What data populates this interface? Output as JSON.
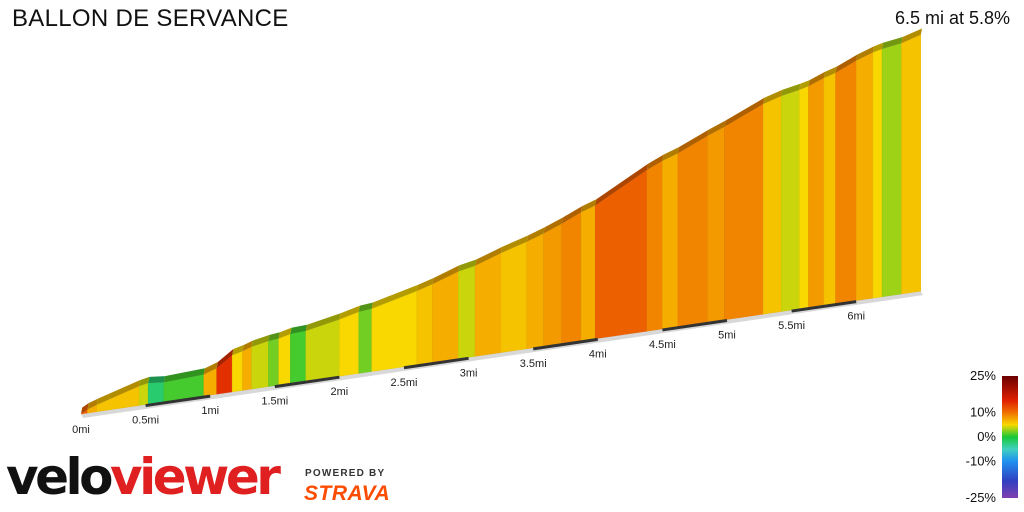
{
  "header": {
    "title": "BALLON DE SERVANCE",
    "summary": "6.5 mi at 5.8%"
  },
  "brand": {
    "logo_part_a": "velo",
    "logo_part_b": "viewer",
    "powered_by": "POWERED BY",
    "strava": "STRAVA"
  },
  "chart_data": {
    "type": "area",
    "title": "BALLON DE SERVANCE",
    "subtitle": "6.5 mi at 5.8%",
    "xlabel": "",
    "ylabel": "",
    "x_unit": "mi",
    "xlim": [
      0,
      6.5
    ],
    "x_ticks": [
      "0mi",
      "0.5mi",
      "1mi",
      "1.5mi",
      "2mi",
      "2.5mi",
      "3mi",
      "3.5mi",
      "4mi",
      "4.5mi",
      "5mi",
      "5.5mi",
      "6mi"
    ],
    "grid": false,
    "segments": [
      {
        "start": 0.0,
        "end": 0.05,
        "gradient": 11
      },
      {
        "start": 0.05,
        "end": 0.12,
        "gradient": 7
      },
      {
        "start": 0.12,
        "end": 0.45,
        "gradient": 6
      },
      {
        "start": 0.45,
        "end": 0.52,
        "gradient": 4
      },
      {
        "start": 0.52,
        "end": 0.64,
        "gradient": -2
      },
      {
        "start": 0.64,
        "end": 0.95,
        "gradient": 1
      },
      {
        "start": 0.95,
        "end": 1.05,
        "gradient": 7
      },
      {
        "start": 1.05,
        "end": 1.17,
        "gradient": 14
      },
      {
        "start": 1.17,
        "end": 1.25,
        "gradient": 5
      },
      {
        "start": 1.25,
        "end": 1.32,
        "gradient": 7
      },
      {
        "start": 1.32,
        "end": 1.45,
        "gradient": 4
      },
      {
        "start": 1.45,
        "end": 1.53,
        "gradient": 2
      },
      {
        "start": 1.53,
        "end": 1.62,
        "gradient": 5
      },
      {
        "start": 1.62,
        "end": 1.74,
        "gradient": 1
      },
      {
        "start": 1.74,
        "end": 2.0,
        "gradient": 4
      },
      {
        "start": 2.0,
        "end": 2.15,
        "gradient": 5
      },
      {
        "start": 2.15,
        "end": 2.25,
        "gradient": 2
      },
      {
        "start": 2.25,
        "end": 2.6,
        "gradient": 5
      },
      {
        "start": 2.6,
        "end": 2.72,
        "gradient": 6
      },
      {
        "start": 2.72,
        "end": 2.92,
        "gradient": 7
      },
      {
        "start": 2.92,
        "end": 3.05,
        "gradient": 4
      },
      {
        "start": 3.05,
        "end": 3.25,
        "gradient": 7
      },
      {
        "start": 3.25,
        "end": 3.45,
        "gradient": 6
      },
      {
        "start": 3.45,
        "end": 3.58,
        "gradient": 7
      },
      {
        "start": 3.58,
        "end": 3.72,
        "gradient": 8
      },
      {
        "start": 3.72,
        "end": 3.87,
        "gradient": 9
      },
      {
        "start": 3.87,
        "end": 3.98,
        "gradient": 7
      },
      {
        "start": 3.98,
        "end": 4.38,
        "gradient": 11
      },
      {
        "start": 4.38,
        "end": 4.5,
        "gradient": 9
      },
      {
        "start": 4.5,
        "end": 4.62,
        "gradient": 7
      },
      {
        "start": 4.62,
        "end": 4.85,
        "gradient": 9
      },
      {
        "start": 4.85,
        "end": 4.98,
        "gradient": 8
      },
      {
        "start": 4.98,
        "end": 5.28,
        "gradient": 9
      },
      {
        "start": 5.28,
        "end": 5.42,
        "gradient": 6
      },
      {
        "start": 5.42,
        "end": 5.56,
        "gradient": 4
      },
      {
        "start": 5.56,
        "end": 5.63,
        "gradient": 5
      },
      {
        "start": 5.63,
        "end": 5.75,
        "gradient": 8
      },
      {
        "start": 5.75,
        "end": 5.84,
        "gradient": 6
      },
      {
        "start": 5.84,
        "end": 6.0,
        "gradient": 9
      },
      {
        "start": 6.0,
        "end": 6.13,
        "gradient": 7
      },
      {
        "start": 6.13,
        "end": 6.2,
        "gradient": 5
      },
      {
        "start": 6.2,
        "end": 6.35,
        "gradient": 3
      },
      {
        "start": 6.35,
        "end": 6.5,
        "gradient": 6
      }
    ],
    "gradient_scale": {
      "labels": [
        "25%",
        "10%",
        "0%",
        "-10%",
        "-25%"
      ],
      "stops": [
        {
          "value": 25,
          "color": "#6a0000"
        },
        {
          "value": 15,
          "color": "#e02000"
        },
        {
          "value": 10,
          "color": "#f07000"
        },
        {
          "value": 5,
          "color": "#f8d800"
        },
        {
          "value": 0,
          "color": "#18c838"
        },
        {
          "value": -5,
          "color": "#40d0c0"
        },
        {
          "value": -10,
          "color": "#2090f0"
        },
        {
          "value": -18,
          "color": "#3040c0"
        },
        {
          "value": -25,
          "color": "#8040b0"
        }
      ]
    }
  }
}
